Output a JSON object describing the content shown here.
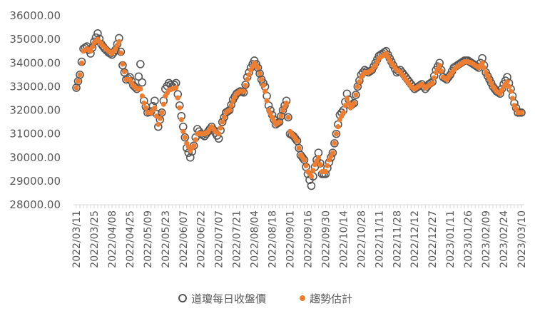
{
  "chart_data": {
    "type": "scatter",
    "ylim": [
      28000,
      36000
    ],
    "y_ticks": [
      "28000.00",
      "29000.00",
      "30000.00",
      "31000.00",
      "32000.00",
      "33000.00",
      "34000.00",
      "35000.00",
      "36000.00"
    ],
    "x_ticks": [
      "2022/03/11",
      "2022/03/25",
      "2022/04/08",
      "2022/04/25",
      "2022/05/09",
      "2022/05/23",
      "2022/06/07",
      "2022/06/22",
      "2022/07/07",
      "2022/07/21",
      "2022/08/04",
      "2022/08/18",
      "2022/09/01",
      "2022/09/16",
      "2022/09/30",
      "2022/10/14",
      "2022/10/28",
      "2022/11/11",
      "2022/11/28",
      "2022/12/12",
      "2022/12/27",
      "2023/01/11",
      "2023/01/26",
      "2023/02/09",
      "2023/02/24",
      "2023/03/10"
    ],
    "x_ticks_index": [
      0,
      10,
      20,
      30,
      40,
      50,
      60,
      70,
      80,
      90,
      100,
      110,
      120,
      130,
      140,
      150,
      160,
      170,
      180,
      190,
      200,
      210,
      220,
      230,
      240,
      250
    ],
    "legend_position": "bottom",
    "colors": {
      "actual": "#555555",
      "trend": "#ED7D31",
      "axis": "#D9D9D9",
      "text": "#595959"
    },
    "series": [
      {
        "name": "道瓊每日收盤價",
        "marker": "hollow-circle",
        "anchors": [
          [
            0,
            32950
          ],
          [
            2,
            33500
          ],
          [
            4,
            34600
          ],
          [
            6,
            34700
          ],
          [
            8,
            34400
          ],
          [
            10,
            34900
          ],
          [
            12,
            35250
          ],
          [
            14,
            34800
          ],
          [
            16,
            34600
          ],
          [
            18,
            34450
          ],
          [
            20,
            34350
          ],
          [
            22,
            34550
          ],
          [
            24,
            35050
          ],
          [
            26,
            33900
          ],
          [
            28,
            33300
          ],
          [
            30,
            33400
          ],
          [
            32,
            33050
          ],
          [
            34,
            32900
          ],
          [
            36,
            33950
          ],
          [
            38,
            32400
          ],
          [
            40,
            31900
          ],
          [
            42,
            31950
          ],
          [
            44,
            32400
          ],
          [
            46,
            31300
          ],
          [
            48,
            31900
          ],
          [
            50,
            32900
          ],
          [
            52,
            33150
          ],
          [
            54,
            33000
          ],
          [
            56,
            33150
          ],
          [
            58,
            32200
          ],
          [
            60,
            31300
          ],
          [
            62,
            30400
          ],
          [
            64,
            30000
          ],
          [
            66,
            30500
          ],
          [
            68,
            31200
          ],
          [
            70,
            31000
          ],
          [
            72,
            30900
          ],
          [
            74,
            31100
          ],
          [
            76,
            31300
          ],
          [
            78,
            31050
          ],
          [
            80,
            30800
          ],
          [
            82,
            31500
          ],
          [
            84,
            31900
          ],
          [
            86,
            32000
          ],
          [
            88,
            32450
          ],
          [
            90,
            32700
          ],
          [
            92,
            32800
          ],
          [
            94,
            32750
          ],
          [
            96,
            33400
          ],
          [
            98,
            33800
          ],
          [
            100,
            34100
          ],
          [
            102,
            33800
          ],
          [
            104,
            33300
          ],
          [
            106,
            33000
          ],
          [
            108,
            32200
          ],
          [
            110,
            31800
          ],
          [
            112,
            31400
          ],
          [
            114,
            31500
          ],
          [
            116,
            32000
          ],
          [
            118,
            32400
          ],
          [
            120,
            31000
          ],
          [
            122,
            30900
          ],
          [
            124,
            30700
          ],
          [
            126,
            30100
          ],
          [
            128,
            29900
          ],
          [
            130,
            29300
          ],
          [
            132,
            28800
          ],
          [
            134,
            29600
          ],
          [
            136,
            30200
          ],
          [
            138,
            29300
          ],
          [
            140,
            29300
          ],
          [
            142,
            29800
          ],
          [
            144,
            30200
          ],
          [
            146,
            31000
          ],
          [
            148,
            31800
          ],
          [
            150,
            32000
          ],
          [
            152,
            32700
          ],
          [
            154,
            32200
          ],
          [
            156,
            32300
          ],
          [
            158,
            33000
          ],
          [
            160,
            33500
          ],
          [
            162,
            33700
          ],
          [
            164,
            33600
          ],
          [
            166,
            33700
          ],
          [
            168,
            34000
          ],
          [
            170,
            34300
          ],
          [
            172,
            34400
          ],
          [
            174,
            34500
          ],
          [
            176,
            34200
          ],
          [
            178,
            33900
          ],
          [
            180,
            33600
          ],
          [
            182,
            33700
          ],
          [
            184,
            33500
          ],
          [
            186,
            33300
          ],
          [
            188,
            33100
          ],
          [
            190,
            32900
          ],
          [
            192,
            33000
          ],
          [
            194,
            33100
          ],
          [
            196,
            32900
          ],
          [
            198,
            33100
          ],
          [
            200,
            33200
          ],
          [
            202,
            33700
          ],
          [
            204,
            34000
          ],
          [
            206,
            33400
          ],
          [
            208,
            33300
          ],
          [
            210,
            33500
          ],
          [
            212,
            33800
          ],
          [
            214,
            33900
          ],
          [
            216,
            34000
          ],
          [
            218,
            34100
          ],
          [
            220,
            34100
          ],
          [
            222,
            34000
          ],
          [
            224,
            33900
          ],
          [
            226,
            33800
          ],
          [
            228,
            34200
          ],
          [
            230,
            33600
          ],
          [
            232,
            33300
          ],
          [
            234,
            33000
          ],
          [
            236,
            32800
          ],
          [
            238,
            32700
          ],
          [
            240,
            33100
          ],
          [
            242,
            33400
          ],
          [
            244,
            32900
          ],
          [
            246,
            32300
          ],
          [
            248,
            31900
          ],
          [
            250,
            31900
          ]
        ]
      },
      {
        "name": "趨勢估計",
        "marker": "filled-dot",
        "anchors": [
          [
            0,
            32950
          ],
          [
            2,
            33500
          ],
          [
            4,
            34500
          ],
          [
            6,
            34600
          ],
          [
            8,
            34500
          ],
          [
            10,
            34850
          ],
          [
            12,
            35000
          ],
          [
            14,
            34800
          ],
          [
            16,
            34650
          ],
          [
            18,
            34500
          ],
          [
            20,
            34400
          ],
          [
            22,
            34600
          ],
          [
            24,
            34900
          ],
          [
            26,
            33950
          ],
          [
            28,
            33300
          ],
          [
            30,
            33300
          ],
          [
            32,
            33050
          ],
          [
            34,
            32900
          ],
          [
            36,
            32900
          ],
          [
            38,
            32300
          ],
          [
            40,
            31900
          ],
          [
            42,
            31900
          ],
          [
            44,
            32100
          ],
          [
            46,
            31400
          ],
          [
            48,
            31900
          ],
          [
            50,
            32600
          ],
          [
            52,
            32850
          ],
          [
            54,
            32900
          ],
          [
            56,
            32950
          ],
          [
            58,
            32100
          ],
          [
            60,
            31100
          ],
          [
            62,
            30600
          ],
          [
            64,
            30300
          ],
          [
            66,
            30500
          ],
          [
            68,
            31000
          ],
          [
            70,
            31000
          ],
          [
            72,
            31000
          ],
          [
            74,
            31100
          ],
          [
            76,
            31300
          ],
          [
            78,
            31100
          ],
          [
            80,
            31000
          ],
          [
            82,
            31500
          ],
          [
            84,
            31900
          ],
          [
            86,
            32000
          ],
          [
            88,
            32400
          ],
          [
            90,
            32700
          ],
          [
            92,
            32800
          ],
          [
            94,
            32800
          ],
          [
            96,
            33300
          ],
          [
            98,
            33700
          ],
          [
            100,
            34000
          ],
          [
            102,
            33800
          ],
          [
            104,
            33300
          ],
          [
            106,
            32800
          ],
          [
            108,
            32000
          ],
          [
            110,
            31700
          ],
          [
            112,
            31400
          ],
          [
            114,
            31500
          ],
          [
            116,
            32000
          ],
          [
            118,
            32300
          ],
          [
            120,
            31100
          ],
          [
            122,
            30900
          ],
          [
            124,
            30700
          ],
          [
            126,
            30100
          ],
          [
            128,
            29900
          ],
          [
            130,
            29400
          ],
          [
            132,
            29200
          ],
          [
            134,
            29700
          ],
          [
            136,
            30000
          ],
          [
            138,
            29400
          ],
          [
            140,
            29400
          ],
          [
            142,
            29900
          ],
          [
            144,
            30200
          ],
          [
            146,
            31000
          ],
          [
            148,
            31600
          ],
          [
            150,
            31900
          ],
          [
            152,
            32500
          ],
          [
            154,
            32100
          ],
          [
            156,
            32300
          ],
          [
            158,
            33000
          ],
          [
            160,
            33400
          ],
          [
            162,
            33600
          ],
          [
            164,
            33600
          ],
          [
            166,
            33700
          ],
          [
            168,
            33900
          ],
          [
            170,
            34200
          ],
          [
            172,
            34300
          ],
          [
            174,
            34400
          ],
          [
            176,
            34100
          ],
          [
            178,
            33900
          ],
          [
            180,
            33700
          ],
          [
            182,
            33600
          ],
          [
            184,
            33400
          ],
          [
            186,
            33200
          ],
          [
            188,
            33000
          ],
          [
            190,
            32900
          ],
          [
            192,
            33000
          ],
          [
            194,
            33100
          ],
          [
            196,
            32950
          ],
          [
            198,
            33050
          ],
          [
            200,
            33150
          ],
          [
            202,
            33600
          ],
          [
            204,
            33900
          ],
          [
            206,
            33400
          ],
          [
            208,
            33300
          ],
          [
            210,
            33500
          ],
          [
            212,
            33700
          ],
          [
            214,
            33850
          ],
          [
            216,
            33950
          ],
          [
            218,
            34050
          ],
          [
            220,
            34050
          ],
          [
            222,
            34000
          ],
          [
            224,
            33900
          ],
          [
            226,
            33800
          ],
          [
            228,
            34000
          ],
          [
            230,
            33600
          ],
          [
            232,
            33300
          ],
          [
            234,
            33000
          ],
          [
            236,
            32800
          ],
          [
            238,
            32700
          ],
          [
            240,
            33000
          ],
          [
            242,
            33200
          ],
          [
            244,
            32800
          ],
          [
            246,
            32200
          ],
          [
            248,
            31900
          ],
          [
            250,
            31900
          ]
        ]
      }
    ]
  }
}
